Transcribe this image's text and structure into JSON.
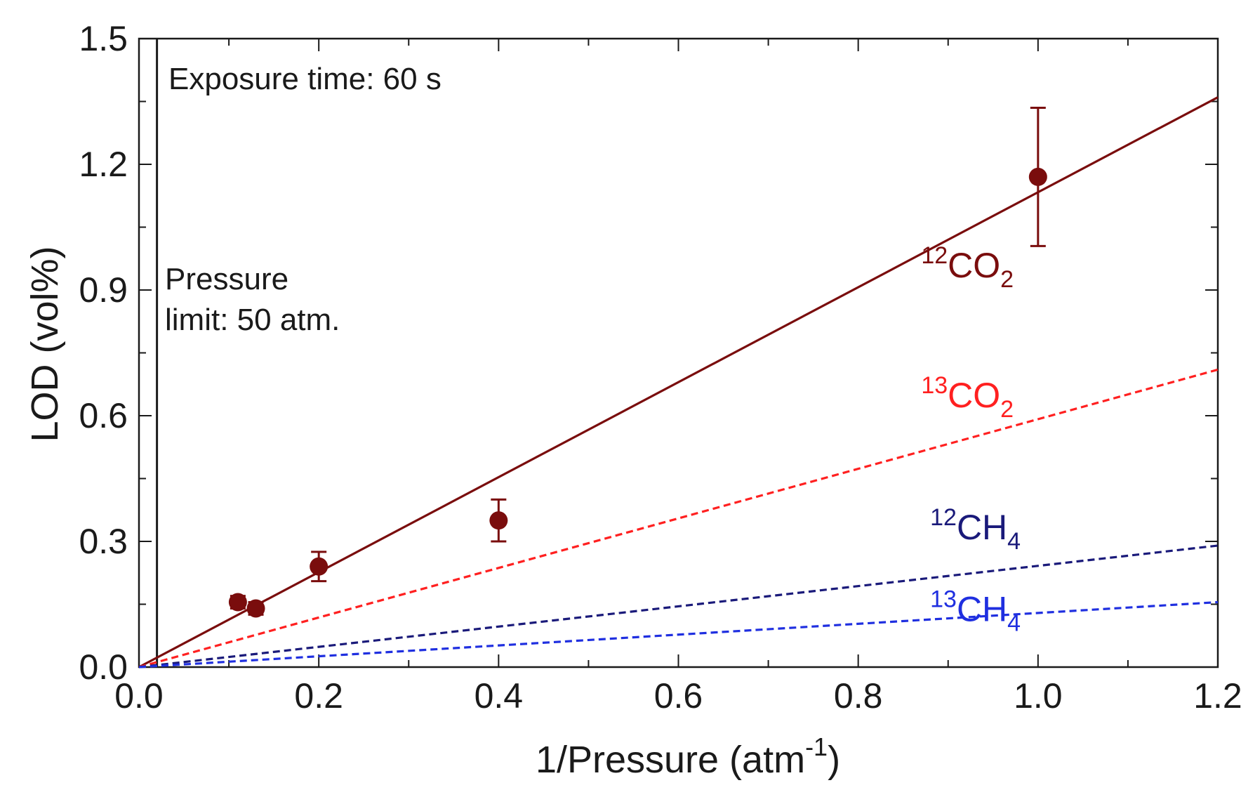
{
  "chart_data": {
    "type": "scatter",
    "xlabel": {
      "main": "1/Pressure (atm",
      "sup": "-1",
      "close": ")"
    },
    "ylabel": "LOD (vol%)",
    "xlim": [
      0.0,
      1.2
    ],
    "ylim": [
      0.0,
      1.5
    ],
    "xticks": [
      "0.0",
      "0.2",
      "0.4",
      "0.6",
      "0.8",
      "1.0",
      "1.2"
    ],
    "yticks": [
      "0.0",
      "0.3",
      "0.6",
      "0.9",
      "1.2",
      "1.5"
    ],
    "grid": false,
    "reference_line": {
      "x": 0.02,
      "description": "pressure limit marker"
    },
    "annotations": {
      "exposure": "Exposure time: 60 s",
      "pressure_line1": "Pressure",
      "pressure_line2": "limit: 50 atm."
    },
    "measured": {
      "name": "12CO2 measured",
      "color": "#7a0d0d",
      "points": [
        {
          "x": 0.11,
          "y": 0.155,
          "err": 0.015
        },
        {
          "x": 0.13,
          "y": 0.14,
          "err": 0.015
        },
        {
          "x": 0.2,
          "y": 0.24,
          "err": 0.035
        },
        {
          "x": 0.4,
          "y": 0.35,
          "err": 0.05
        },
        {
          "x": 1.0,
          "y": 1.17,
          "err": 0.165
        }
      ]
    },
    "fits": [
      {
        "name": "12CO2",
        "label_sup": "12",
        "label_main": "CO",
        "label_sub": "2",
        "color": "#7a0d0d",
        "dash": "solid",
        "x0": 0.0,
        "y0": 0.0,
        "x1": 1.2,
        "y1": 1.36
      },
      {
        "name": "13CO2",
        "label_sup": "13",
        "label_main": "CO",
        "label_sub": "2",
        "color": "#ff2020",
        "dash": "dashed",
        "x0": 0.0,
        "y0": 0.0,
        "x1": 1.2,
        "y1": 0.71
      },
      {
        "name": "12CH4",
        "label_sup": "12",
        "label_main": "CH",
        "label_sub": "4",
        "color": "#1a1a7a",
        "dash": "dashed",
        "x0": 0.0,
        "y0": 0.0,
        "x1": 1.2,
        "y1": 0.29
      },
      {
        "name": "13CH4",
        "label_sup": "13",
        "label_main": "CH",
        "label_sub": "4",
        "color": "#1f2fe0",
        "dash": "dashed",
        "x0": 0.0,
        "y0": 0.0,
        "x1": 1.2,
        "y1": 0.155
      }
    ]
  }
}
